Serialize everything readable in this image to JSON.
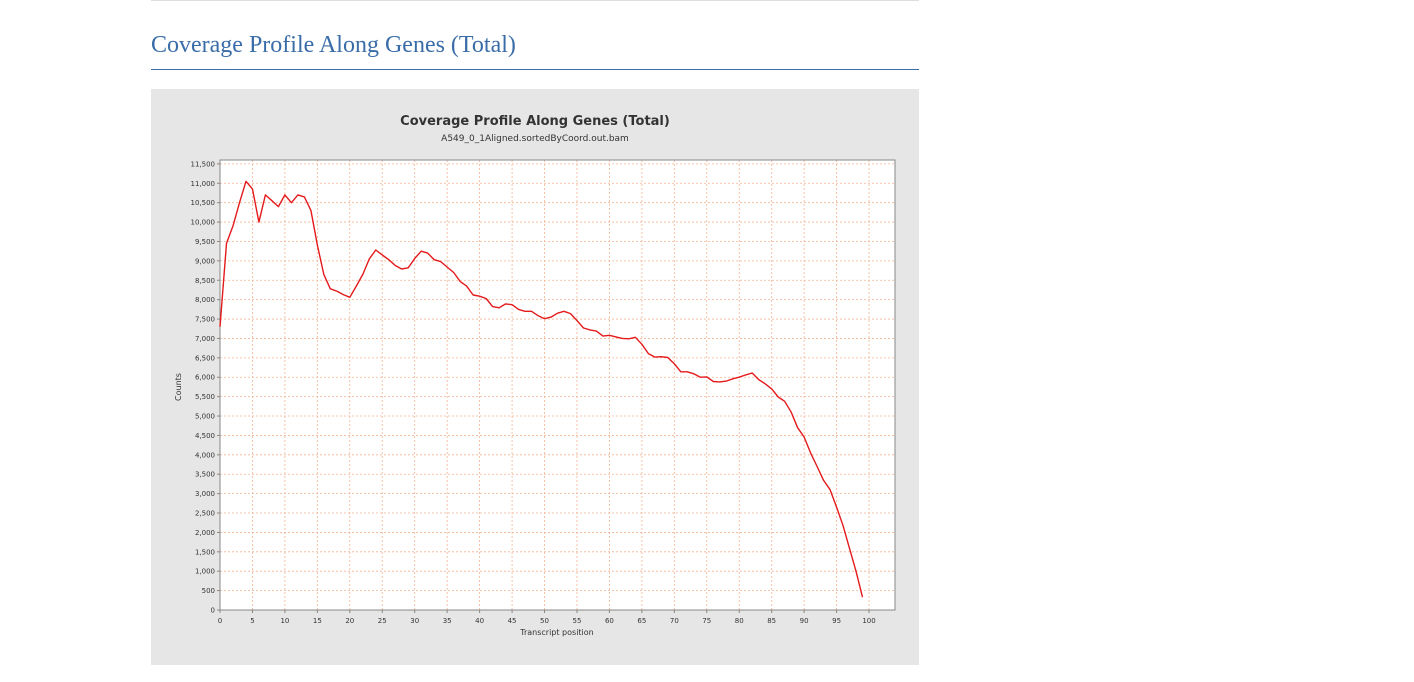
{
  "section": {
    "title": "Coverage Profile Along Genes (Total)"
  },
  "chart_data": {
    "type": "line",
    "title": "Coverage Profile Along Genes (Total)",
    "subtitle": "A549_0_1Aligned.sortedByCoord.out.bam",
    "xlabel": "Transcript position",
    "ylabel": "Counts",
    "xlim": [
      0,
      104
    ],
    "ylim": [
      0,
      11600
    ],
    "x_ticks": [
      0,
      5,
      10,
      15,
      20,
      25,
      30,
      35,
      40,
      45,
      50,
      55,
      60,
      65,
      70,
      75,
      80,
      85,
      90,
      95,
      100
    ],
    "y_ticks": [
      0,
      500,
      1000,
      1500,
      2000,
      2500,
      3000,
      3500,
      4000,
      4500,
      5000,
      5500,
      6000,
      6500,
      7000,
      7500,
      8000,
      8500,
      9000,
      9500,
      10000,
      10500,
      11000,
      11500
    ],
    "x_tick_labels": [
      "0",
      "5",
      "10",
      "15",
      "20",
      "25",
      "30",
      "35",
      "40",
      "45",
      "50",
      "55",
      "60",
      "65",
      "70",
      "75",
      "80",
      "85",
      "90",
      "95",
      "100"
    ],
    "y_tick_labels": [
      "0",
      "500",
      "1,000",
      "1,500",
      "2,000",
      "2,500",
      "3,000",
      "3,500",
      "4,000",
      "4,500",
      "5,000",
      "5,500",
      "6,000",
      "6,500",
      "7,000",
      "7,500",
      "8,000",
      "8,500",
      "9,000",
      "9,500",
      "10,000",
      "10,500",
      "11,000",
      "11,500"
    ],
    "grid": true,
    "legend": "none",
    "colors": {
      "line": "#e41a1c",
      "grid": "#f3b491",
      "plot_bg": "#ffffff",
      "panel_bg": "#e6e6e6",
      "axis": "#888888"
    },
    "series": [
      {
        "values": [
          [
            0,
            7300
          ],
          [
            1,
            9450
          ],
          [
            2,
            9900
          ],
          [
            3,
            10500
          ],
          [
            4,
            11050
          ],
          [
            5,
            10850
          ],
          [
            6,
            10000
          ],
          [
            7,
            10700
          ],
          [
            8,
            10550
          ],
          [
            9,
            10400
          ],
          [
            10,
            10700
          ],
          [
            11,
            10500
          ],
          [
            12,
            10700
          ],
          [
            13,
            10650
          ],
          [
            14,
            10300
          ],
          [
            15,
            9400
          ],
          [
            16,
            8650
          ],
          [
            17,
            8280
          ],
          [
            18,
            8220
          ],
          [
            19,
            8130
          ],
          [
            20,
            8060
          ],
          [
            21,
            8350
          ],
          [
            22,
            8650
          ],
          [
            23,
            9050
          ],
          [
            24,
            9280
          ],
          [
            25,
            9150
          ],
          [
            26,
            9030
          ],
          [
            27,
            8880
          ],
          [
            28,
            8790
          ],
          [
            29,
            8820
          ],
          [
            30,
            9060
          ],
          [
            31,
            9250
          ],
          [
            32,
            9200
          ],
          [
            33,
            9030
          ],
          [
            34,
            8980
          ],
          [
            35,
            8840
          ],
          [
            36,
            8700
          ],
          [
            37,
            8470
          ],
          [
            38,
            8350
          ],
          [
            39,
            8120
          ],
          [
            40,
            8090
          ],
          [
            41,
            8030
          ],
          [
            42,
            7820
          ],
          [
            43,
            7790
          ],
          [
            44,
            7890
          ],
          [
            45,
            7870
          ],
          [
            46,
            7750
          ],
          [
            47,
            7700
          ],
          [
            48,
            7700
          ],
          [
            49,
            7590
          ],
          [
            50,
            7510
          ],
          [
            51,
            7550
          ],
          [
            52,
            7650
          ],
          [
            53,
            7700
          ],
          [
            54,
            7640
          ],
          [
            55,
            7460
          ],
          [
            56,
            7270
          ],
          [
            57,
            7220
          ],
          [
            58,
            7190
          ],
          [
            59,
            7060
          ],
          [
            60,
            7080
          ],
          [
            61,
            7040
          ],
          [
            62,
            7000
          ],
          [
            63,
            6990
          ],
          [
            64,
            7030
          ],
          [
            65,
            6850
          ],
          [
            66,
            6610
          ],
          [
            67,
            6520
          ],
          [
            68,
            6530
          ],
          [
            69,
            6510
          ],
          [
            70,
            6350
          ],
          [
            71,
            6140
          ],
          [
            72,
            6140
          ],
          [
            73,
            6090
          ],
          [
            74,
            6000
          ],
          [
            75,
            6010
          ],
          [
            76,
            5890
          ],
          [
            77,
            5880
          ],
          [
            78,
            5900
          ],
          [
            79,
            5960
          ],
          [
            80,
            6000
          ],
          [
            81,
            6060
          ],
          [
            82,
            6110
          ],
          [
            83,
            5940
          ],
          [
            84,
            5830
          ],
          [
            85,
            5700
          ],
          [
            86,
            5490
          ],
          [
            87,
            5380
          ],
          [
            88,
            5100
          ],
          [
            89,
            4700
          ],
          [
            90,
            4460
          ],
          [
            91,
            4050
          ],
          [
            92,
            3700
          ],
          [
            93,
            3340
          ],
          [
            94,
            3100
          ],
          [
            95,
            2650
          ],
          [
            96,
            2170
          ],
          [
            97,
            1580
          ],
          [
            98,
            990
          ],
          [
            99,
            330
          ]
        ]
      }
    ]
  }
}
